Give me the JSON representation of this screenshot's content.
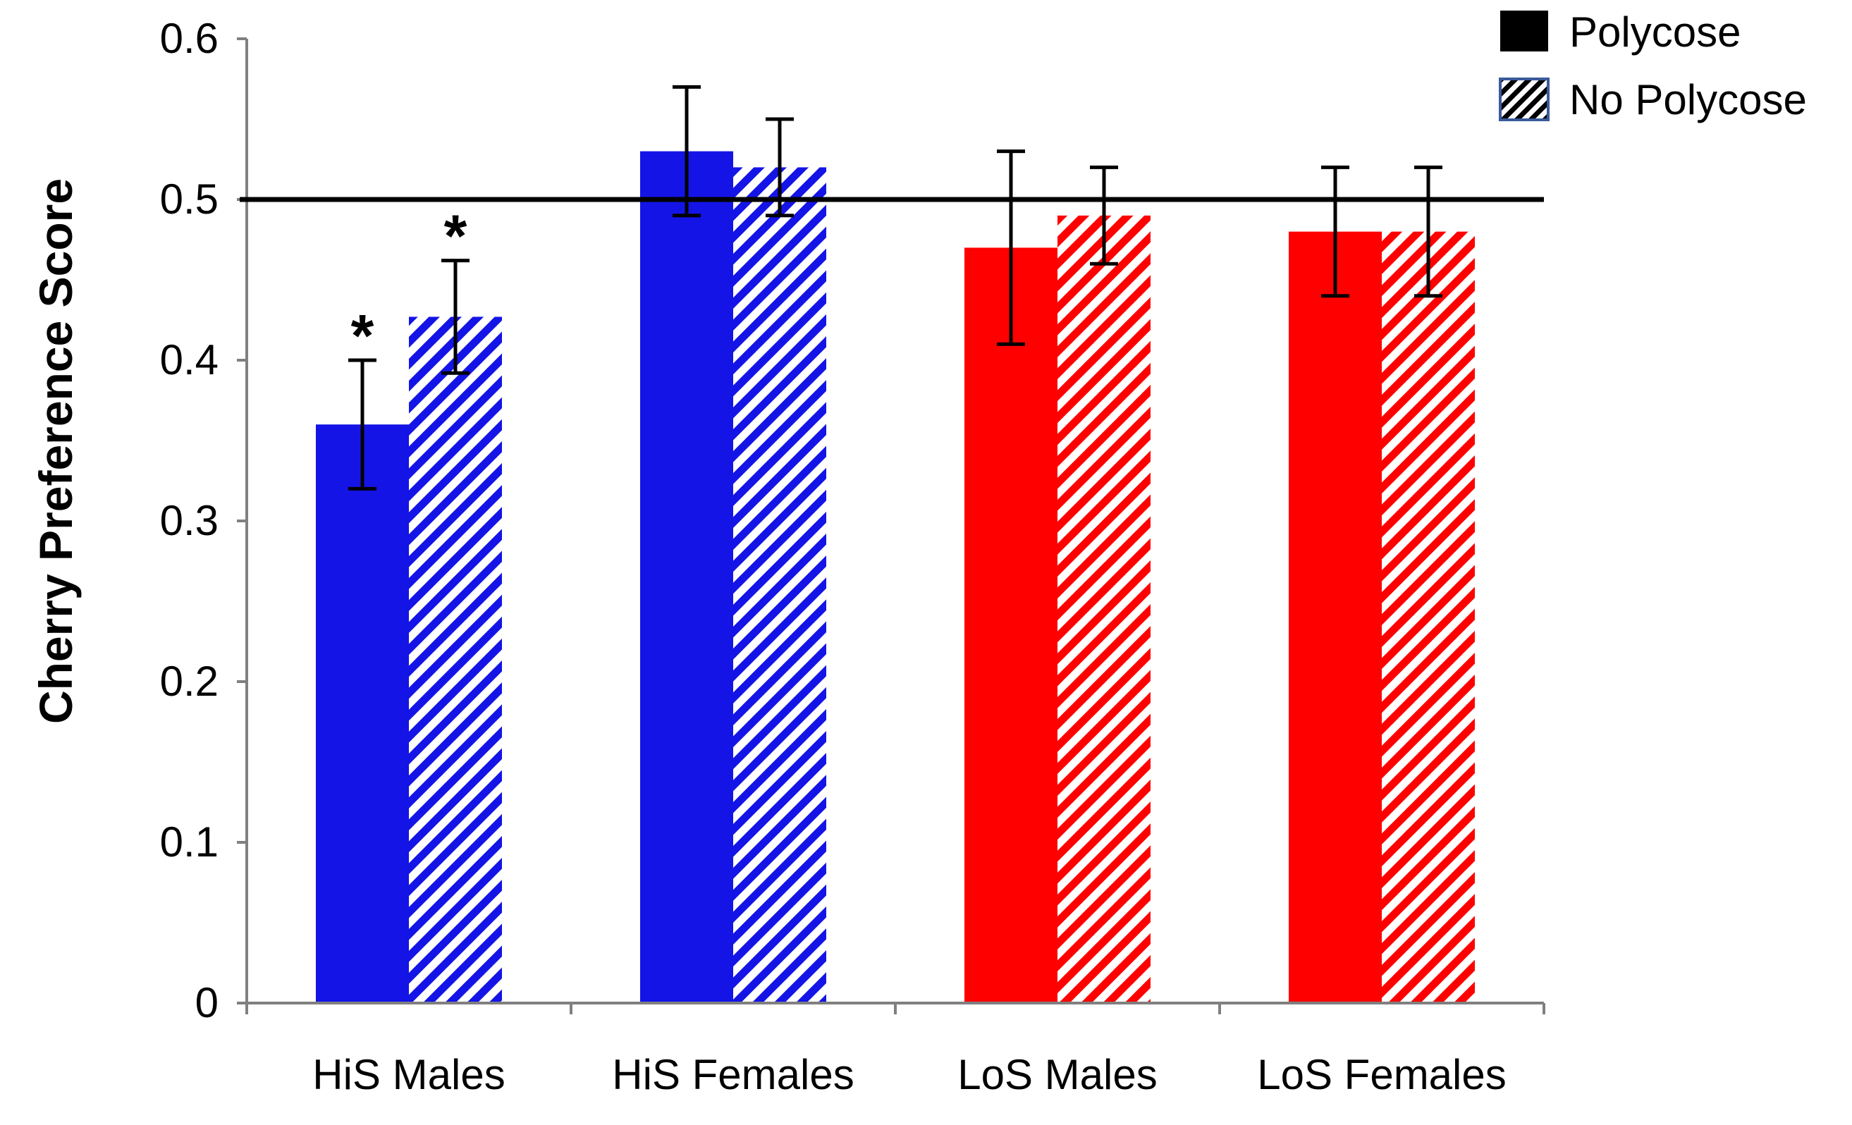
{
  "chart_data": {
    "type": "bar",
    "title": "",
    "xlabel": "",
    "ylabel": "Cherry Preference Score",
    "ylim": [
      0,
      0.6
    ],
    "yticks": [
      0,
      0.1,
      0.2,
      0.3,
      0.4,
      0.5,
      0.6
    ],
    "ytick_labels": [
      "0",
      "0.1",
      "0.2",
      "0.3",
      "0.4",
      "0.5",
      "0.6"
    ],
    "categories": [
      "HiS Males",
      "HiS Females",
      "LoS Males",
      "LoS Females"
    ],
    "category_colors": [
      "#1414e6",
      "#1414e6",
      "#ff0000",
      "#ff0000"
    ],
    "reference_line": 0.5,
    "series": [
      {
        "name": "Polycose",
        "pattern": "solid",
        "values": [
          0.36,
          0.53,
          0.47,
          0.48
        ],
        "errors": [
          0.04,
          0.04,
          0.06,
          0.04
        ],
        "significance": [
          "*",
          "",
          "",
          ""
        ]
      },
      {
        "name": "No Polycose",
        "pattern": "hatched",
        "values": [
          0.427,
          0.52,
          0.49,
          0.48
        ],
        "errors": [
          0.035,
          0.03,
          0.03,
          0.04
        ],
        "significance": [
          "*",
          "",
          "",
          ""
        ]
      }
    ],
    "legend": {
      "position": "top-right",
      "entries": [
        {
          "label": "Polycose",
          "swatch": "solid-black"
        },
        {
          "label": "No Polycose",
          "swatch": "hatched-black"
        }
      ]
    }
  }
}
